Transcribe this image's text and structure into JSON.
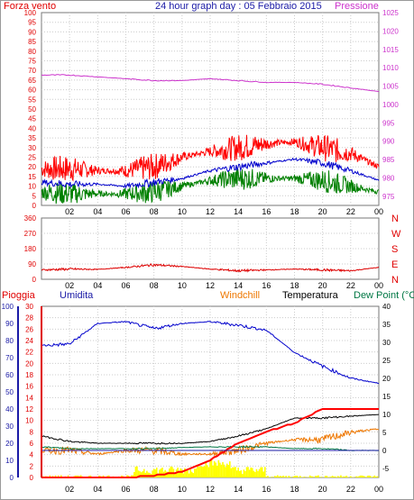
{
  "header": {
    "left_label": "Forza vento",
    "left_unit": "",
    "title": "24 hour graph day : 05 Febbraio 2015",
    "right_label": "Pressione"
  },
  "panel1": {
    "left_ticks": [
      "0",
      "5",
      "10",
      "15",
      "20",
      "25",
      "30",
      "35",
      "40",
      "45",
      "50",
      "55",
      "60",
      "65",
      "70",
      "75",
      "80",
      "85",
      "90",
      "95",
      "100"
    ],
    "right_ticks": [
      "975",
      "980",
      "985",
      "990",
      "995",
      "1000",
      "1005",
      "1010",
      "1015",
      "1020",
      "1025"
    ],
    "x_ticks": [
      "02",
      "04",
      "06",
      "08",
      "10",
      "12",
      "14",
      "16",
      "18",
      "20",
      "22",
      "00"
    ]
  },
  "panel2": {
    "left_ticks": [
      "0",
      "90",
      "180",
      "270",
      "360"
    ],
    "dir_labels": [
      "N",
      "W",
      "S",
      "E",
      "N"
    ],
    "x_ticks": [
      "02",
      "04",
      "06",
      "08",
      "10",
      "12",
      "14",
      "16",
      "18",
      "20",
      "22",
      "00"
    ]
  },
  "panel3": {
    "legend": {
      "pioggia": "Pioggia",
      "umidita": "Umidita",
      "windchill": "Windchill",
      "temperatura": "Temperatura",
      "dewpoint": "Dew Point (°C"
    },
    "hum_ticks": [
      "0",
      "10",
      "20",
      "30",
      "40",
      "50",
      "60",
      "70",
      "80",
      "90",
      "100"
    ],
    "rain_ticks": [
      "0",
      "2",
      "4",
      "6",
      "8",
      "10",
      "12",
      "14",
      "16",
      "18",
      "20",
      "22",
      "24",
      "26",
      "28",
      "30"
    ],
    "temp_ticks": [
      "-5",
      "0",
      "5",
      "10",
      "15",
      "20",
      "25",
      "30",
      "35",
      "40"
    ],
    "x_ticks": [
      "02",
      "04",
      "06",
      "08",
      "10",
      "12",
      "14",
      "16",
      "18",
      "20",
      "22",
      "00"
    ]
  },
  "colors": {
    "wind_gust": "#ff0000",
    "wind_avg": "#0000cc",
    "wind_min": "#008000",
    "pressure": "#cc33cc",
    "direction": "#dd0000",
    "humidity": "#0000cc",
    "rain": "#ff0000",
    "temperature": "#000000",
    "windchill": "#ee7700",
    "dewpoint": "#007744",
    "rainrate": "#ffff00"
  },
  "chart_data": [
    {
      "type": "line",
      "x": [
        "00",
        "02",
        "04",
        "06",
        "08",
        "10",
        "12",
        "14",
        "16",
        "18",
        "20",
        "22",
        "00"
      ],
      "series": [
        {
          "name": "Forza vento",
          "values": [
            19,
            19,
            18,
            18,
            20,
            25,
            28,
            30,
            32,
            33,
            30,
            27,
            20
          ]
        },
        {
          "name": "",
          "values": [
            12,
            11,
            11,
            10,
            12,
            14,
            18,
            20,
            22,
            24,
            22,
            18,
            13
          ]
        },
        {
          "name": "",
          "values": [
            7,
            6,
            6,
            6,
            7,
            10,
            13,
            14,
            14,
            14,
            13,
            10,
            7
          ]
        },
        {
          "name": "Pressione",
          "values": [
            1008,
            1008,
            1007.5,
            1007,
            1006.5,
            1006.5,
            1007,
            1006.5,
            1006,
            1006,
            1005.5,
            1004.5,
            1003.5
          ]
        }
      ],
      "ylim": [
        0,
        100
      ],
      "y2lim": [
        975,
        1025
      ]
    },
    {
      "type": "line",
      "x": [
        "00",
        "02",
        "04",
        "06",
        "08",
        "10",
        "12",
        "14",
        "16",
        "18",
        "20",
        "22",
        "00"
      ],
      "series": [
        {
          "name": "",
          "values": [
            55,
            60,
            58,
            70,
            85,
            75,
            60,
            50,
            55,
            60,
            55,
            50,
            70
          ]
        }
      ],
      "ylim": [
        0,
        360
      ]
    },
    {
      "type": "line",
      "x": [
        "00",
        "02",
        "04",
        "06",
        "08",
        "10",
        "12",
        "14",
        "16",
        "18",
        "20",
        "22",
        "00"
      ],
      "series": [
        {
          "name": "Umidita",
          "values": [
            77,
            78,
            90,
            91,
            87,
            90,
            91,
            89,
            86,
            73,
            65,
            58,
            55
          ]
        },
        {
          "name": "Pioggia",
          "values": [
            0,
            0,
            0,
            0,
            0.3,
            1,
            3,
            6,
            8,
            9.5,
            12,
            12,
            12
          ]
        },
        {
          "name": "Temperatura",
          "values": [
            4,
            2.5,
            2,
            2,
            2,
            2,
            2.5,
            4,
            6,
            9,
            9,
            9.5,
            10
          ]
        },
        {
          "name": "Windchill",
          "values": [
            0,
            0,
            -1,
            0,
            0,
            -1,
            -1,
            0,
            2,
            3,
            3,
            5,
            6
          ]
        },
        {
          "name": "Dew Point (°C",
          "values": [
            1,
            0.5,
            0.5,
            0.5,
            0.5,
            0.8,
            1,
            1,
            1,
            0.5,
            0.5,
            0,
            0
          ]
        }
      ],
      "ylim": [
        0,
        100
      ]
    }
  ]
}
